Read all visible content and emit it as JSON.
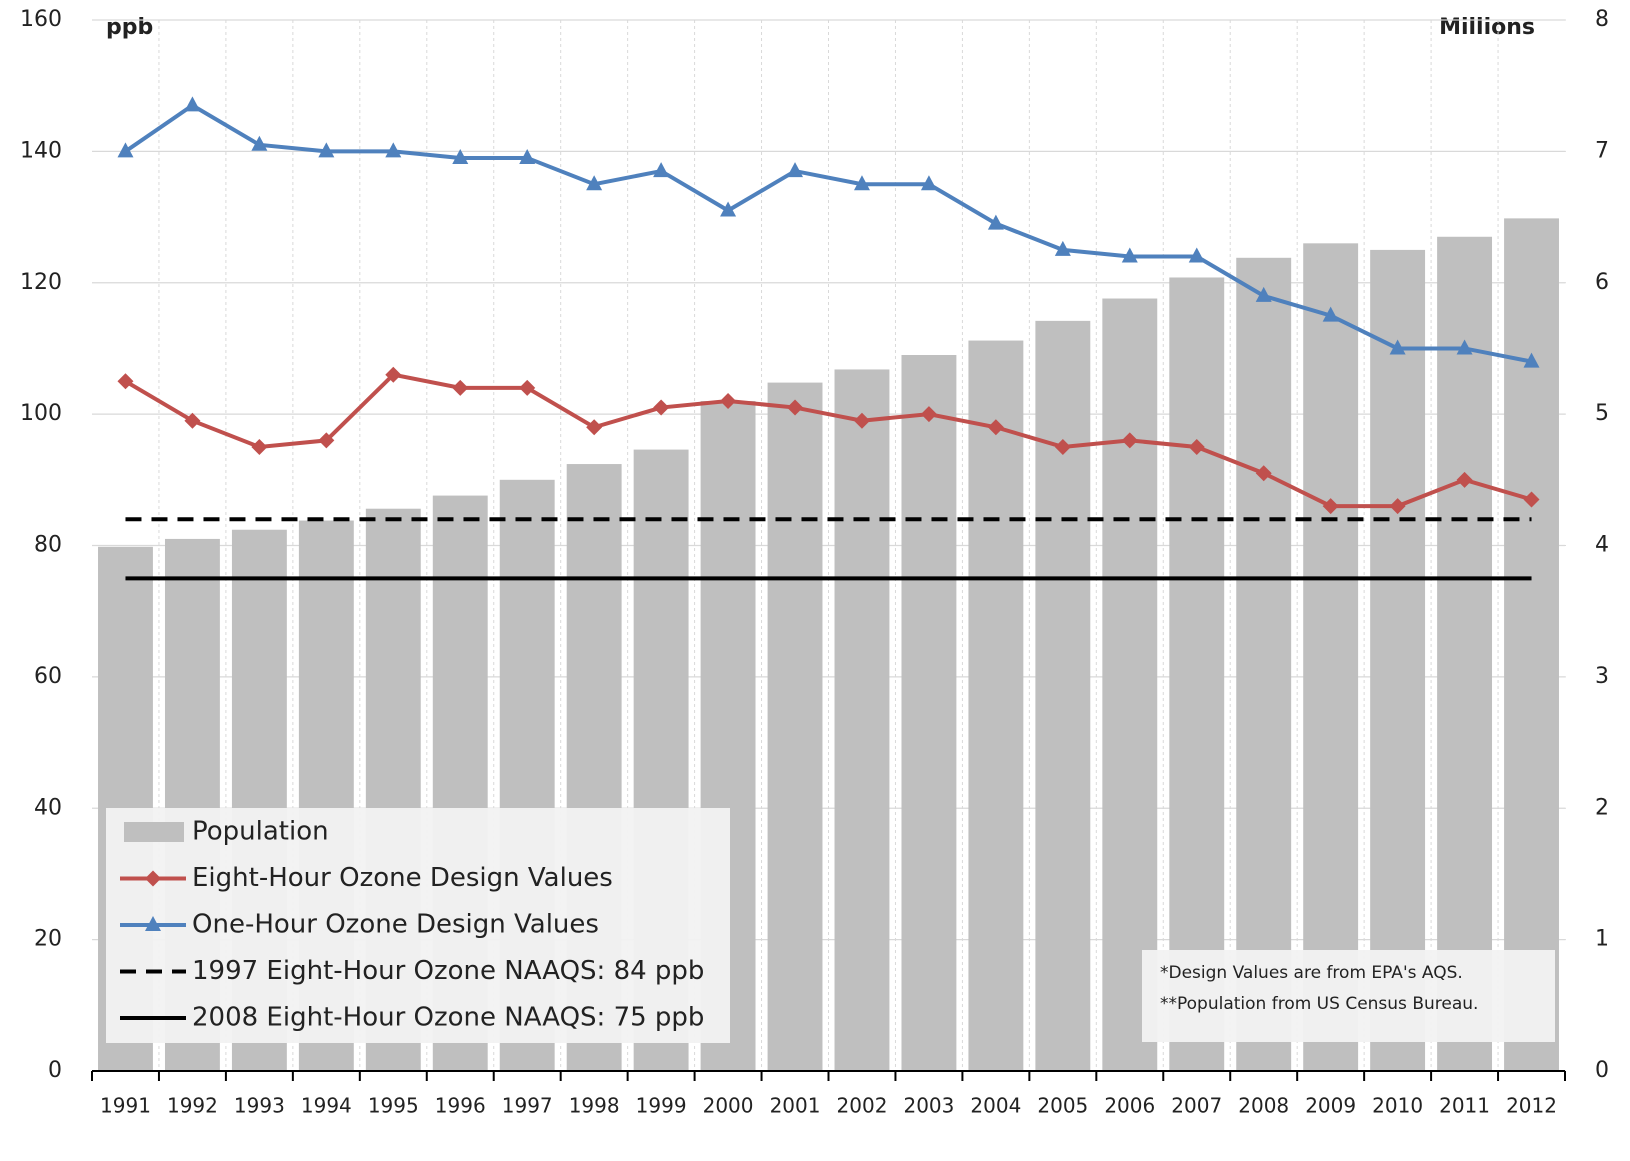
{
  "chart_data": {
    "type": "bar_line",
    "y_label": "ppb",
    "y2_label": "Millions",
    "categories": [
      "1991",
      "1992",
      "1993",
      "1994",
      "1995",
      "1996",
      "1997",
      "1998",
      "1999",
      "2000",
      "2001",
      "2002",
      "2003",
      "2004",
      "2005",
      "2006",
      "2007",
      "2008",
      "2009",
      "2010",
      "2011",
      "2012"
    ],
    "series": [
      {
        "name": "Population",
        "type": "bar",
        "axis": "y2",
        "color": "#bfbfbf",
        "values": [
          3.99,
          4.05,
          4.12,
          4.19,
          4.28,
          4.38,
          4.5,
          4.62,
          4.73,
          5.1,
          5.24,
          5.34,
          5.45,
          5.56,
          5.71,
          5.88,
          6.04,
          6.19,
          6.3,
          6.25,
          6.35,
          6.49
        ]
      },
      {
        "name": "Eight-Hour Ozone Design Values",
        "type": "line",
        "color": "#c0504d",
        "marker": "diamond",
        "style": "solid",
        "values": [
          105,
          99,
          95,
          96,
          106,
          104,
          104,
          98,
          101,
          102,
          101,
          99,
          100,
          98,
          95,
          96,
          95,
          91,
          86,
          86,
          90,
          87
        ]
      },
      {
        "name": "One-Hour Ozone Design Values",
        "type": "line",
        "color": "#4f81bd",
        "marker": "triangle",
        "style": "solid",
        "values": [
          140,
          147,
          141,
          140,
          140,
          139,
          139,
          135,
          137,
          131,
          137,
          135,
          135,
          129,
          125,
          124,
          124,
          118,
          115,
          110,
          110,
          108
        ]
      },
      {
        "name": "1997 Eight-Hour Ozone NAAQS: 84 ppb",
        "type": "line",
        "color": "#000000",
        "style": "dashed",
        "values": [
          84,
          84,
          84,
          84,
          84,
          84,
          84,
          84,
          84,
          84,
          84,
          84,
          84,
          84,
          84,
          84,
          84,
          84,
          84,
          84,
          84,
          84
        ]
      },
      {
        "name": "2008 Eight-Hour Ozone NAAQS: 75 ppb",
        "type": "line",
        "color": "#000000",
        "style": "solid",
        "values": [
          75,
          75,
          75,
          75,
          75,
          75,
          75,
          75,
          75,
          75,
          75,
          75,
          75,
          75,
          75,
          75,
          75,
          75,
          75,
          75,
          75,
          75
        ]
      }
    ],
    "ylim": [
      0,
      160
    ],
    "yticks": [
      0,
      20,
      40,
      60,
      80,
      100,
      120,
      140,
      160
    ],
    "y2lim": [
      0,
      8
    ],
    "y2ticks": [
      0,
      1,
      2,
      3,
      4,
      5,
      6,
      7,
      8
    ],
    "grid": true,
    "legend": "lower left",
    "notes": [
      "*Design Values are from EPA's AQS.",
      "**Population from US Census Bureau."
    ]
  }
}
